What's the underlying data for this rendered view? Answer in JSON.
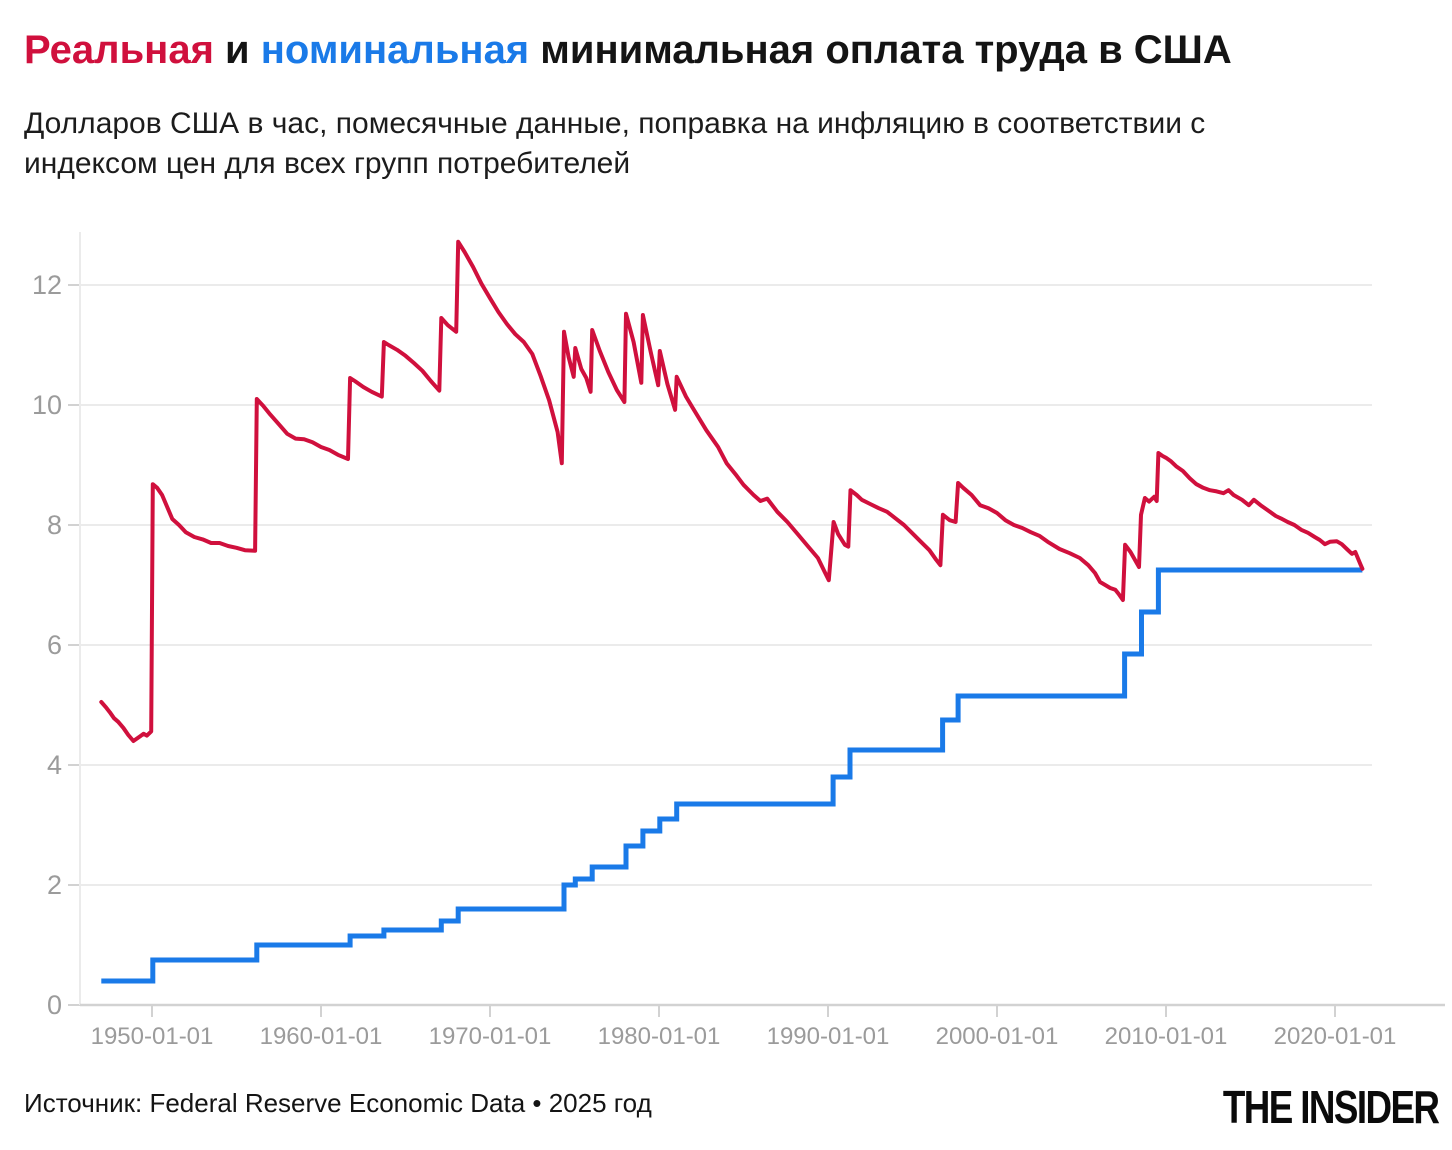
{
  "title": {
    "real": "Реальная",
    "and": " и ",
    "nominal": "номинальная",
    "rest": " минимальная оплата труда в США"
  },
  "subtitle": {
    "line1": "Долларов США в час, помесячные данные, поправка на инфляцию в соответствии с",
    "line2": "индексом цен для всех групп потребителей"
  },
  "footer": {
    "source": "Источник: Federal Reserve Economic Data • 2025 год",
    "logo": "THE INSIDER"
  },
  "colors": {
    "real": "#d0103d",
    "nominal": "#1a7ae8",
    "gridline": "#ebebeb",
    "axis_baseline": "#d2d2d2",
    "axis_label": "#9b9b9b"
  },
  "chart_data": {
    "type": "line",
    "title": "Реальная и номинальная минимальная оплата труда в США",
    "xlabel": "",
    "ylabel": "Долларов США в час",
    "grid": "horizontal",
    "legend": "none (series named by colored words in title)",
    "y_axis": {
      "ticks": [
        0,
        2,
        4,
        6,
        8,
        10,
        12
      ],
      "range": [
        0,
        12.9
      ]
    },
    "x_axis": {
      "ticks": [
        {
          "label": "1950-01-01",
          "year": 1950
        },
        {
          "label": "1960-01-01",
          "year": 1960
        },
        {
          "label": "1970-01-01",
          "year": 1970
        },
        {
          "label": "1980-01-01",
          "year": 1980
        },
        {
          "label": "1990-01-01",
          "year": 1990
        },
        {
          "label": "2000-01-01",
          "year": 2000
        },
        {
          "label": "2010-01-01",
          "year": 2010
        },
        {
          "label": "2020-01-01",
          "year": 2020
        }
      ],
      "range": [
        1947.0,
        2021.9
      ],
      "data_end": 2021.62
    },
    "series": [
      {
        "name": "Реальная минимальная оплата труда (с поправкой на инфляцию)",
        "type": "line",
        "color_key": "real",
        "points": [
          [
            1947.0,
            5.05
          ],
          [
            1947.25,
            4.97
          ],
          [
            1947.5,
            4.88
          ],
          [
            1947.75,
            4.78
          ],
          [
            1948.0,
            4.72
          ],
          [
            1948.3,
            4.62
          ],
          [
            1948.6,
            4.5
          ],
          [
            1948.9,
            4.4
          ],
          [
            1949.1,
            4.44
          ],
          [
            1949.3,
            4.48
          ],
          [
            1949.5,
            4.52
          ],
          [
            1949.7,
            4.49
          ],
          [
            1949.95,
            4.56
          ],
          [
            1950.05,
            8.68
          ],
          [
            1950.3,
            8.62
          ],
          [
            1950.6,
            8.5
          ],
          [
            1950.9,
            8.3
          ],
          [
            1951.2,
            8.1
          ],
          [
            1951.6,
            8.0
          ],
          [
            1952.0,
            7.88
          ],
          [
            1952.5,
            7.8
          ],
          [
            1953.0,
            7.76
          ],
          [
            1953.5,
            7.7
          ],
          [
            1954.0,
            7.7
          ],
          [
            1954.5,
            7.65
          ],
          [
            1955.0,
            7.62
          ],
          [
            1955.5,
            7.58
          ],
          [
            1956.1,
            7.57
          ],
          [
            1956.2,
            10.1
          ],
          [
            1956.6,
            9.98
          ],
          [
            1957.0,
            9.84
          ],
          [
            1957.5,
            9.68
          ],
          [
            1958.0,
            9.52
          ],
          [
            1958.5,
            9.44
          ],
          [
            1959.0,
            9.43
          ],
          [
            1959.5,
            9.38
          ],
          [
            1960.0,
            9.3
          ],
          [
            1960.5,
            9.25
          ],
          [
            1961.0,
            9.17
          ],
          [
            1961.6,
            9.1
          ],
          [
            1961.72,
            10.45
          ],
          [
            1962.0,
            10.4
          ],
          [
            1962.5,
            10.3
          ],
          [
            1963.0,
            10.22
          ],
          [
            1963.6,
            10.14
          ],
          [
            1963.72,
            11.05
          ],
          [
            1964.0,
            11.0
          ],
          [
            1964.5,
            10.92
          ],
          [
            1965.0,
            10.82
          ],
          [
            1965.5,
            10.7
          ],
          [
            1966.0,
            10.57
          ],
          [
            1966.5,
            10.4
          ],
          [
            1967.0,
            10.24
          ],
          [
            1967.12,
            11.45
          ],
          [
            1967.5,
            11.33
          ],
          [
            1968.0,
            11.22
          ],
          [
            1968.12,
            12.72
          ],
          [
            1968.5,
            12.55
          ],
          [
            1969.0,
            12.3
          ],
          [
            1969.5,
            12.02
          ],
          [
            1970.0,
            11.78
          ],
          [
            1970.5,
            11.55
          ],
          [
            1971.0,
            11.35
          ],
          [
            1971.5,
            11.18
          ],
          [
            1972.0,
            11.05
          ],
          [
            1972.5,
            10.85
          ],
          [
            1973.0,
            10.48
          ],
          [
            1973.5,
            10.08
          ],
          [
            1974.0,
            9.55
          ],
          [
            1974.25,
            9.03
          ],
          [
            1974.38,
            11.22
          ],
          [
            1974.65,
            10.8
          ],
          [
            1974.95,
            10.47
          ],
          [
            1975.05,
            10.95
          ],
          [
            1975.4,
            10.6
          ],
          [
            1975.7,
            10.45
          ],
          [
            1975.95,
            10.22
          ],
          [
            1976.05,
            11.25
          ],
          [
            1976.5,
            10.9
          ],
          [
            1977.0,
            10.55
          ],
          [
            1977.5,
            10.25
          ],
          [
            1977.95,
            10.05
          ],
          [
            1978.05,
            11.52
          ],
          [
            1978.5,
            11.05
          ],
          [
            1978.95,
            10.37
          ],
          [
            1979.05,
            11.5
          ],
          [
            1979.5,
            10.9
          ],
          [
            1979.95,
            10.33
          ],
          [
            1980.05,
            10.9
          ],
          [
            1980.5,
            10.35
          ],
          [
            1980.95,
            9.92
          ],
          [
            1981.05,
            10.47
          ],
          [
            1981.6,
            10.14
          ],
          [
            1982.0,
            9.95
          ],
          [
            1982.8,
            9.58
          ],
          [
            1983.5,
            9.3
          ],
          [
            1984.0,
            9.03
          ],
          [
            1984.6,
            8.82
          ],
          [
            1985.0,
            8.67
          ],
          [
            1985.6,
            8.5
          ],
          [
            1986.0,
            8.4
          ],
          [
            1986.4,
            8.44
          ],
          [
            1987.0,
            8.22
          ],
          [
            1987.6,
            8.05
          ],
          [
            1988.2,
            7.85
          ],
          [
            1988.8,
            7.65
          ],
          [
            1989.4,
            7.45
          ],
          [
            1989.8,
            7.22
          ],
          [
            1990.05,
            7.08
          ],
          [
            1990.33,
            8.05
          ],
          [
            1990.6,
            7.85
          ],
          [
            1991.0,
            7.67
          ],
          [
            1991.2,
            7.64
          ],
          [
            1991.33,
            8.58
          ],
          [
            1991.7,
            8.5
          ],
          [
            1992.0,
            8.42
          ],
          [
            1992.5,
            8.35
          ],
          [
            1993.0,
            8.28
          ],
          [
            1993.5,
            8.22
          ],
          [
            1994.0,
            8.11
          ],
          [
            1994.5,
            8.0
          ],
          [
            1995.0,
            7.86
          ],
          [
            1995.5,
            7.72
          ],
          [
            1996.0,
            7.58
          ],
          [
            1996.4,
            7.42
          ],
          [
            1996.65,
            7.33
          ],
          [
            1996.8,
            8.17
          ],
          [
            1997.2,
            8.08
          ],
          [
            1997.55,
            8.05
          ],
          [
            1997.7,
            8.7
          ],
          [
            1998.0,
            8.62
          ],
          [
            1998.5,
            8.5
          ],
          [
            1999.0,
            8.33
          ],
          [
            1999.5,
            8.28
          ],
          [
            2000.0,
            8.2
          ],
          [
            2000.5,
            8.08
          ],
          [
            2001.0,
            8.0
          ],
          [
            2001.5,
            7.95
          ],
          [
            2002.0,
            7.88
          ],
          [
            2002.5,
            7.82
          ],
          [
            2003.0,
            7.72
          ],
          [
            2003.7,
            7.6
          ],
          [
            2004.3,
            7.53
          ],
          [
            2004.9,
            7.45
          ],
          [
            2005.4,
            7.33
          ],
          [
            2005.8,
            7.2
          ],
          [
            2006.1,
            7.05
          ],
          [
            2006.4,
            7.0
          ],
          [
            2006.7,
            6.95
          ],
          [
            2007.0,
            6.92
          ],
          [
            2007.2,
            6.85
          ],
          [
            2007.45,
            6.75
          ],
          [
            2007.58,
            7.67
          ],
          [
            2007.9,
            7.55
          ],
          [
            2008.2,
            7.4
          ],
          [
            2008.4,
            7.3
          ],
          [
            2008.52,
            8.17
          ],
          [
            2008.75,
            8.45
          ],
          [
            2009.0,
            8.39
          ],
          [
            2009.3,
            8.47
          ],
          [
            2009.45,
            8.4
          ],
          [
            2009.55,
            9.2
          ],
          [
            2009.8,
            9.15
          ],
          [
            2010.0,
            9.12
          ],
          [
            2010.3,
            9.06
          ],
          [
            2010.6,
            8.98
          ],
          [
            2011.0,
            8.9
          ],
          [
            2011.4,
            8.78
          ],
          [
            2011.8,
            8.68
          ],
          [
            2012.2,
            8.62
          ],
          [
            2012.6,
            8.58
          ],
          [
            2013.0,
            8.56
          ],
          [
            2013.4,
            8.53
          ],
          [
            2013.7,
            8.58
          ],
          [
            2014.0,
            8.5
          ],
          [
            2014.5,
            8.42
          ],
          [
            2014.9,
            8.33
          ],
          [
            2015.2,
            8.42
          ],
          [
            2015.6,
            8.33
          ],
          [
            2016.0,
            8.25
          ],
          [
            2016.5,
            8.15
          ],
          [
            2016.8,
            8.11
          ],
          [
            2017.2,
            8.05
          ],
          [
            2017.6,
            8.0
          ],
          [
            2018.0,
            7.92
          ],
          [
            2018.4,
            7.87
          ],
          [
            2018.8,
            7.8
          ],
          [
            2019.1,
            7.75
          ],
          [
            2019.4,
            7.68
          ],
          [
            2019.7,
            7.72
          ],
          [
            2020.1,
            7.73
          ],
          [
            2020.4,
            7.68
          ],
          [
            2020.7,
            7.6
          ],
          [
            2021.0,
            7.52
          ],
          [
            2021.2,
            7.55
          ],
          [
            2021.35,
            7.45
          ],
          [
            2021.5,
            7.35
          ],
          [
            2021.62,
            7.27
          ]
        ]
      },
      {
        "name": "Номинальная минимальная оплата труда",
        "type": "step",
        "color_key": "nominal",
        "points": [
          [
            1947.0,
            0.4
          ],
          [
            1950.05,
            0.75
          ],
          [
            1956.2,
            1.0
          ],
          [
            1961.72,
            1.15
          ],
          [
            1963.72,
            1.25
          ],
          [
            1967.12,
            1.4
          ],
          [
            1968.12,
            1.6
          ],
          [
            1974.38,
            2.0
          ],
          [
            1975.05,
            2.1
          ],
          [
            1976.05,
            2.3
          ],
          [
            1978.05,
            2.65
          ],
          [
            1979.05,
            2.9
          ],
          [
            1980.05,
            3.1
          ],
          [
            1981.05,
            3.35
          ],
          [
            1990.3,
            3.8
          ],
          [
            1991.3,
            4.25
          ],
          [
            1996.78,
            4.75
          ],
          [
            1997.7,
            5.15
          ],
          [
            2007.55,
            5.85
          ],
          [
            2008.55,
            6.55
          ],
          [
            2009.55,
            7.25
          ]
        ]
      }
    ]
  }
}
